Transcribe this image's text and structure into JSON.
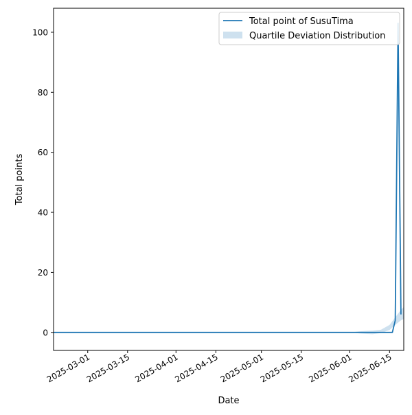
{
  "chart_data": {
    "type": "line",
    "title": "",
    "xlabel": "Date",
    "ylabel": "Total points",
    "x_ticks": [
      "2025-03-01",
      "2025-03-15",
      "2025-04-01",
      "2025-04-15",
      "2025-05-01",
      "2025-05-15",
      "2025-06-01",
      "2025-06-15"
    ],
    "y_ticks": [
      0,
      20,
      40,
      60,
      80,
      100
    ],
    "xlim": [
      "2025-02-17",
      "2025-06-20"
    ],
    "ylim": [
      -6,
      108
    ],
    "legend_position": "top-right",
    "grid": false,
    "series": [
      {
        "name": "Total point of SusuTima",
        "color": "#1f77b4",
        "points": [
          {
            "x": "2025-02-17",
            "y": 0
          },
          {
            "x": "2025-06-16",
            "y": 0
          },
          {
            "x": "2025-06-17",
            "y": 4
          },
          {
            "x": "2025-06-18",
            "y": 103
          },
          {
            "x": "2025-06-19",
            "y": 6
          }
        ]
      }
    ],
    "band": {
      "name": "Quartile Deviation Distribution",
      "color": "#1f77b4",
      "opacity": 0.22,
      "points": [
        {
          "x": "2025-06-01",
          "lower": 0,
          "upper": 0
        },
        {
          "x": "2025-06-05",
          "lower": -0.4,
          "upper": 0.4
        },
        {
          "x": "2025-06-09",
          "lower": -0.6,
          "upper": 0.6
        },
        {
          "x": "2025-06-12",
          "lower": -0.2,
          "upper": 0.9
        },
        {
          "x": "2025-06-15",
          "lower": 0.8,
          "upper": 2.5
        },
        {
          "x": "2025-06-17",
          "lower": 2.5,
          "upper": 5
        },
        {
          "x": "2025-06-19",
          "lower": 4,
          "upper": 7.5
        },
        {
          "x": "2025-06-20",
          "lower": 4.5,
          "upper": 8.5
        }
      ]
    }
  }
}
